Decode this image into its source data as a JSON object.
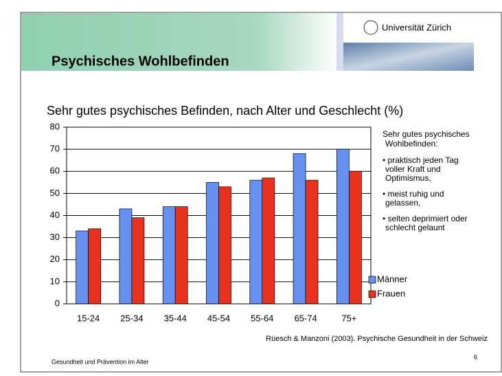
{
  "header": {
    "title": "Psychisches Wohlbefinden",
    "logo": "Universität Zürich"
  },
  "chart_data": {
    "type": "bar",
    "title": "Sehr gutes psychisches Befinden, nach Alter und Geschlecht (%)",
    "categories": [
      "15-24",
      "25-34",
      "35-44",
      "45-54",
      "55-64",
      "65-74",
      "75+"
    ],
    "series": [
      {
        "name": "Männer",
        "color": "#6690f0",
        "values": [
          33,
          43,
          44,
          55,
          56,
          68,
          70
        ]
      },
      {
        "name": "Frauen",
        "color": "#e8321e",
        "values": [
          34,
          39,
          44,
          53,
          57,
          56,
          60
        ]
      }
    ],
    "ylim": [
      0,
      80
    ],
    "yticks": [
      0,
      10,
      20,
      30,
      40,
      50,
      60,
      70,
      80
    ],
    "grid": true,
    "legend": "right"
  },
  "notes": {
    "heading": [
      "Sehr gutes psychisches",
      "Wohlbefinden:"
    ],
    "items": [
      [
        "• praktisch jeden Tag",
        "voller Kraft und",
        "Optimismus,"
      ],
      [
        "• meist ruhig und",
        "gelassen,"
      ],
      [
        "• selten deprimiert oder",
        "schlecht gelaunt"
      ]
    ]
  },
  "source": "Rüesch & Manzoni (2003). Psychische Gesundheit in der Schweiz",
  "footer": "Gesundheit und Prävention im Alter",
  "page_number": "6"
}
